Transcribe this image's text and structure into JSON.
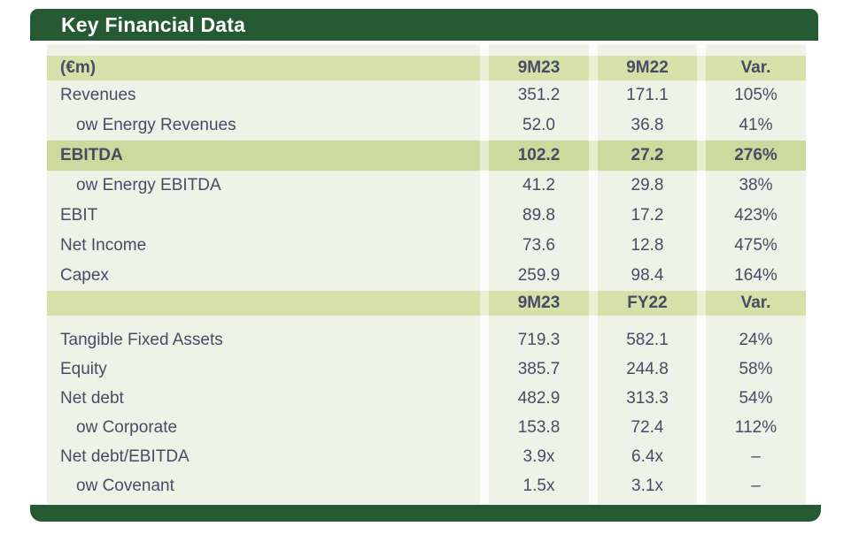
{
  "title": "Key Financial Data",
  "colors": {
    "bar_dark_green": "#265a33",
    "header_band_green": "#d6e0a8",
    "highlight_band_green": "#cdd99d",
    "row_cream": "#eff2e6",
    "text_slate": "#474c66",
    "title_text": "#ffffff"
  },
  "sections": [
    {
      "header_label": "(€m)",
      "columns": [
        "9M23",
        "9M22",
        "Var."
      ],
      "rows": [
        {
          "label": "Revenues",
          "values": [
            "351.2",
            "171.1",
            "105%"
          ]
        },
        {
          "label": "ow Energy Revenues",
          "values": [
            "52.0",
            "36.8",
            "41%"
          ]
        },
        {
          "label": "EBITDA",
          "values": [
            "102.2",
            "27.2",
            "276%"
          ]
        },
        {
          "label": "ow Energy EBITDA",
          "values": [
            "41.2",
            "29.8",
            "38%"
          ]
        },
        {
          "label": "EBIT",
          "values": [
            "89.8",
            "17.2",
            "423%"
          ]
        },
        {
          "label": "Net Income",
          "values": [
            "73.6",
            "12.8",
            "475%"
          ]
        },
        {
          "label": "Capex",
          "values": [
            "259.9",
            "98.4",
            "164%"
          ]
        }
      ]
    },
    {
      "header_label": "",
      "columns": [
        "9M23",
        "FY22",
        "Var."
      ],
      "rows": [
        {
          "label": "Tangible Fixed Assets",
          "values": [
            "719.3",
            "582.1",
            "24%"
          ]
        },
        {
          "label": "Equity",
          "values": [
            "385.7",
            "244.8",
            "58%"
          ]
        },
        {
          "label": "Net debt",
          "values": [
            "482.9",
            "313.3",
            "54%"
          ]
        },
        {
          "label": "ow Corporate",
          "values": [
            "153.8",
            "72.4",
            "112%"
          ]
        },
        {
          "label": "Net debt/EBITDA",
          "values": [
            "3.9x",
            "6.4x",
            "–"
          ]
        },
        {
          "label": "ow Covenant",
          "values": [
            "1.5x",
            "3.1x",
            "–"
          ]
        }
      ]
    }
  ]
}
